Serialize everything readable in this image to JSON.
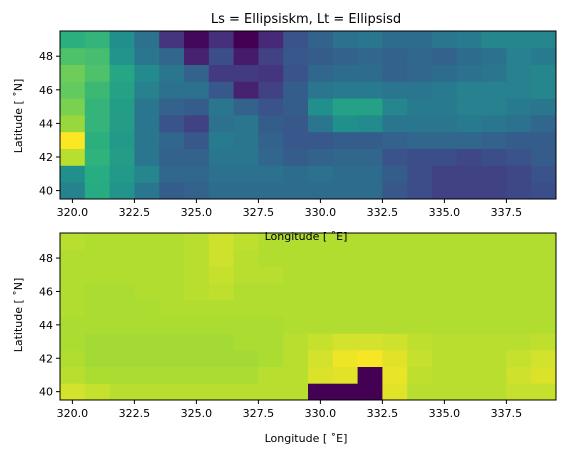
{
  "chart_data": [
    {
      "type": "heatmap",
      "title": "Ls = Ellipsiskm, Lt = Ellipsisd",
      "xlabel": "Longitude [$^\\circ$E]",
      "ylabel": "Latitude [$^\\circ$N]",
      "xlabel_display": "Longitude [ ˚E]",
      "ylabel_display": "Latitude [ ˚N]",
      "xlim": [
        319.5,
        339.5
      ],
      "ylim": [
        39.5,
        49.5
      ],
      "xticks": [
        "320.0",
        "322.5",
        "325.0",
        "327.5",
        "330.0",
        "332.5",
        "335.0",
        "337.5"
      ],
      "xtick_values": [
        320.0,
        322.5,
        325.0,
        327.5,
        330.0,
        332.5,
        335.0,
        337.5
      ],
      "yticks": [
        "40",
        "42",
        "44",
        "46",
        "48"
      ],
      "ytick_values": [
        40,
        42,
        44,
        46,
        48
      ],
      "colormap": "viridis",
      "value_range": [
        0,
        1
      ],
      "x": [
        320,
        321,
        322,
        323,
        324,
        325,
        326,
        327,
        328,
        329,
        330,
        331,
        332,
        333,
        334,
        335,
        336,
        337,
        338,
        339
      ],
      "y": [
        40,
        41,
        42,
        43,
        44,
        45,
        46,
        47,
        48,
        49
      ],
      "values": [
        [
          0.45,
          0.62,
          0.52,
          0.4,
          0.3,
          0.32,
          0.36,
          0.36,
          0.36,
          0.36,
          0.36,
          0.36,
          0.36,
          0.28,
          0.24,
          0.2,
          0.2,
          0.2,
          0.22,
          0.24
        ],
        [
          0.5,
          0.63,
          0.54,
          0.46,
          0.34,
          0.34,
          0.38,
          0.38,
          0.38,
          0.36,
          0.38,
          0.36,
          0.36,
          0.3,
          0.24,
          0.2,
          0.2,
          0.2,
          0.22,
          0.26
        ],
        [
          0.9,
          0.65,
          0.56,
          0.4,
          0.32,
          0.32,
          0.4,
          0.4,
          0.34,
          0.3,
          0.32,
          0.34,
          0.34,
          0.26,
          0.24,
          0.24,
          0.22,
          0.24,
          0.26,
          0.3
        ],
        [
          1.0,
          0.64,
          0.54,
          0.4,
          0.34,
          0.28,
          0.42,
          0.4,
          0.32,
          0.28,
          0.28,
          0.3,
          0.3,
          0.32,
          0.34,
          0.34,
          0.34,
          0.32,
          0.3,
          0.3
        ],
        [
          0.85,
          0.66,
          0.56,
          0.4,
          0.26,
          0.2,
          0.38,
          0.4,
          0.3,
          0.28,
          0.4,
          0.5,
          0.48,
          0.4,
          0.4,
          0.4,
          0.42,
          0.4,
          0.38,
          0.34
        ],
        [
          0.8,
          0.66,
          0.56,
          0.4,
          0.32,
          0.3,
          0.4,
          0.32,
          0.26,
          0.3,
          0.5,
          0.58,
          0.58,
          0.46,
          0.42,
          0.42,
          0.44,
          0.44,
          0.42,
          0.4
        ],
        [
          0.76,
          0.68,
          0.58,
          0.44,
          0.38,
          0.38,
          0.28,
          0.1,
          0.2,
          0.3,
          0.4,
          0.42,
          0.42,
          0.4,
          0.4,
          0.42,
          0.44,
          0.44,
          0.44,
          0.46
        ],
        [
          0.78,
          0.72,
          0.6,
          0.48,
          0.4,
          0.32,
          0.18,
          0.18,
          0.16,
          0.26,
          0.34,
          0.36,
          0.36,
          0.32,
          0.34,
          0.36,
          0.38,
          0.4,
          0.44,
          0.46
        ],
        [
          0.72,
          0.7,
          0.52,
          0.4,
          0.34,
          0.1,
          0.24,
          0.08,
          0.2,
          0.28,
          0.3,
          0.32,
          0.34,
          0.32,
          0.34,
          0.32,
          0.36,
          0.38,
          0.44,
          0.42
        ],
        [
          0.64,
          0.66,
          0.5,
          0.38,
          0.16,
          0.02,
          0.14,
          0.0,
          0.12,
          0.26,
          0.32,
          0.38,
          0.4,
          0.36,
          0.36,
          0.4,
          0.42,
          0.46,
          0.46,
          0.46
        ]
      ]
    },
    {
      "type": "heatmap",
      "title": "",
      "xlabel": "Longitude [$^\\circ$E]",
      "ylabel": "Latitude [$^\\circ$N]",
      "xlabel_display": "Longitude [ ˚E]",
      "ylabel_display": "Latitude [ ˚N]",
      "xlim": [
        319.5,
        339.5
      ],
      "ylim": [
        39.5,
        49.5
      ],
      "xticks": [
        "320.0",
        "322.5",
        "325.0",
        "327.5",
        "330.0",
        "332.5",
        "335.0",
        "337.5"
      ],
      "xtick_values": [
        320.0,
        322.5,
        325.0,
        327.5,
        330.0,
        332.5,
        335.0,
        337.5
      ],
      "yticks": [
        "40",
        "42",
        "44",
        "46",
        "48"
      ],
      "ytick_values": [
        40,
        42,
        44,
        46,
        48
      ],
      "colormap": "viridis",
      "value_range": [
        0,
        1
      ],
      "x": [
        320,
        321,
        322,
        323,
        324,
        325,
        326,
        327,
        328,
        329,
        330,
        331,
        332,
        333,
        334,
        335,
        336,
        337,
        338,
        339
      ],
      "y": [
        40,
        41,
        42,
        43,
        44,
        45,
        46,
        47,
        48,
        49
      ],
      "values": [
        [
          0.94,
          0.92,
          0.9,
          0.9,
          0.9,
          0.9,
          0.9,
          0.9,
          0.9,
          0.9,
          0.0,
          0.0,
          0.0,
          0.96,
          0.9,
          0.9,
          0.9,
          0.9,
          0.92,
          0.92
        ],
        [
          0.9,
          0.88,
          0.88,
          0.88,
          0.88,
          0.88,
          0.88,
          0.88,
          0.9,
          0.9,
          0.95,
          0.96,
          0.0,
          0.97,
          0.91,
          0.9,
          0.9,
          0.9,
          0.93,
          0.95
        ],
        [
          0.89,
          0.87,
          0.87,
          0.87,
          0.87,
          0.87,
          0.87,
          0.87,
          0.88,
          0.9,
          0.94,
          0.98,
          0.99,
          0.96,
          0.92,
          0.9,
          0.9,
          0.9,
          0.92,
          0.94
        ],
        [
          0.88,
          0.87,
          0.87,
          0.87,
          0.87,
          0.87,
          0.87,
          0.88,
          0.88,
          0.9,
          0.92,
          0.94,
          0.94,
          0.93,
          0.91,
          0.9,
          0.9,
          0.9,
          0.9,
          0.91
        ],
        [
          0.88,
          0.88,
          0.88,
          0.88,
          0.88,
          0.88,
          0.88,
          0.88,
          0.88,
          0.89,
          0.89,
          0.89,
          0.89,
          0.89,
          0.89,
          0.89,
          0.89,
          0.89,
          0.89,
          0.89
        ],
        [
          0.89,
          0.88,
          0.88,
          0.88,
          0.89,
          0.89,
          0.89,
          0.89,
          0.89,
          0.89,
          0.89,
          0.89,
          0.89,
          0.89,
          0.89,
          0.89,
          0.89,
          0.89,
          0.89,
          0.89
        ],
        [
          0.89,
          0.88,
          0.88,
          0.89,
          0.89,
          0.9,
          0.91,
          0.89,
          0.89,
          0.89,
          0.89,
          0.89,
          0.89,
          0.89,
          0.89,
          0.89,
          0.89,
          0.89,
          0.89,
          0.89
        ],
        [
          0.89,
          0.89,
          0.89,
          0.89,
          0.89,
          0.9,
          0.92,
          0.9,
          0.9,
          0.89,
          0.89,
          0.89,
          0.89,
          0.89,
          0.89,
          0.89,
          0.89,
          0.89,
          0.89,
          0.89
        ],
        [
          0.89,
          0.89,
          0.89,
          0.89,
          0.89,
          0.9,
          0.93,
          0.9,
          0.89,
          0.89,
          0.89,
          0.89,
          0.89,
          0.89,
          0.89,
          0.89,
          0.89,
          0.89,
          0.89,
          0.89
        ],
        [
          0.9,
          0.89,
          0.89,
          0.89,
          0.89,
          0.9,
          0.93,
          0.91,
          0.89,
          0.89,
          0.89,
          0.89,
          0.89,
          0.89,
          0.89,
          0.89,
          0.89,
          0.89,
          0.89,
          0.89
        ]
      ]
    }
  ]
}
